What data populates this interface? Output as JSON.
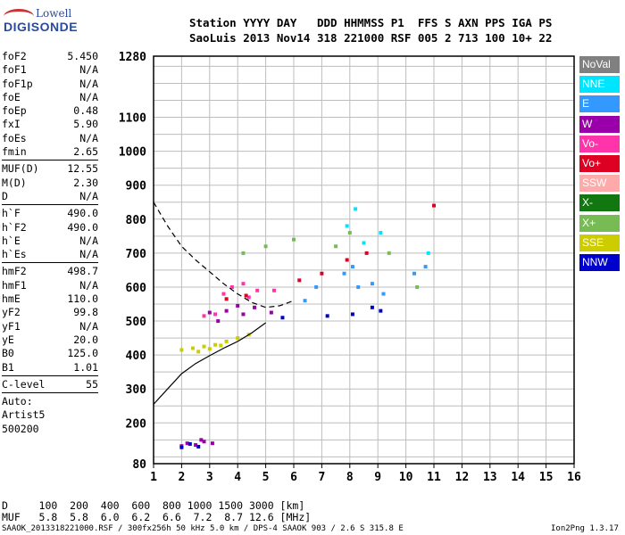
{
  "logo": {
    "top": "Lowell",
    "bottom": "DIGISONDE"
  },
  "header": {
    "line1": "Station YYYY DAY   DDD HHMMSS P1  FFS S AXN PPS IGA PS",
    "line2": "SaoLuis 2013 Nov14 318 221000 RSF 005 2 713 100 10+ 22"
  },
  "params_a": [
    {
      "k": "foF2",
      "v": "5.450"
    },
    {
      "k": "foF1",
      "v": "N/A"
    },
    {
      "k": "foF1p",
      "v": "N/A"
    },
    {
      "k": "foE",
      "v": "N/A"
    },
    {
      "k": "foEp",
      "v": "0.48"
    },
    {
      "k": "fxI",
      "v": "5.90"
    },
    {
      "k": "foEs",
      "v": "N/A"
    },
    {
      "k": "fmin",
      "v": "2.65"
    }
  ],
  "params_b": [
    {
      "k": "MUF(D)",
      "v": "12.55"
    },
    {
      "k": "M(D)",
      "v": "2.30"
    },
    {
      "k": "D",
      "v": "N/A"
    }
  ],
  "params_c": [
    {
      "k": "h`F",
      "v": "490.0"
    },
    {
      "k": "h`F2",
      "v": "490.0"
    },
    {
      "k": "h`E",
      "v": "N/A"
    },
    {
      "k": "h`Es",
      "v": "N/A"
    }
  ],
  "params_d": [
    {
      "k": "hmF2",
      "v": "498.7"
    },
    {
      "k": "hmF1",
      "v": "N/A"
    },
    {
      "k": "hmE",
      "v": "110.0"
    },
    {
      "k": "yF2",
      "v": "99.8"
    },
    {
      "k": "yF1",
      "v": "N/A"
    },
    {
      "k": "yE",
      "v": "20.0"
    },
    {
      "k": "B0",
      "v": "125.0"
    },
    {
      "k": "B1",
      "v": "1.01"
    }
  ],
  "params_e": [
    {
      "k": "C-level",
      "v": "55"
    }
  ],
  "auto": {
    "line1": "Auto:",
    "line2": "Artist5",
    "line3": "500200"
  },
  "legend": [
    {
      "label": "NoVal",
      "color": "#808080"
    },
    {
      "label": "NNE",
      "color": "#00e5ff"
    },
    {
      "label": "E",
      "color": "#3399ff"
    },
    {
      "label": "W",
      "color": "#9900aa"
    },
    {
      "label": "Vo-",
      "color": "#ff33aa"
    },
    {
      "label": "Vo+",
      "color": "#dd0022"
    },
    {
      "label": "SSW",
      "color": "#ffaaaa"
    },
    {
      "label": "X-",
      "color": "#117711"
    },
    {
      "label": "X+",
      "color": "#77bb55"
    },
    {
      "label": "SSE",
      "color": "#cccc00"
    },
    {
      "label": "NNW",
      "color": "#0000cc"
    }
  ],
  "bottom": {
    "d_row": "D     100  200  400  600  800 1000 1500 3000 [km]",
    "muf_row": "MUF   5.8  5.8  6.0  6.2  6.6  7.2  8.7 12.6 [MHz]"
  },
  "footer": {
    "left": "SAAOK_2013318221000.RSF / 300fx256h 50 kHz 5.0 km / DPS-4 SAAOK 903 / 2.6 S 315.8 E",
    "right": "Ion2Png 1.3.17"
  },
  "chart_data": {
    "type": "scatter",
    "xlim": [
      1,
      16
    ],
    "ylim": [
      80,
      1280
    ],
    "x_ticks": [
      1,
      2,
      3,
      4,
      5,
      6,
      7,
      8,
      9,
      10,
      11,
      12,
      13,
      14,
      15,
      16
    ],
    "y_ticks": [
      80,
      200,
      300,
      400,
      500,
      600,
      700,
      800,
      900,
      1000,
      1100,
      1280
    ],
    "grid": true,
    "series": [
      {
        "color": "#cccc00",
        "points": [
          [
            2.0,
            415
          ],
          [
            2.4,
            420
          ],
          [
            2.8,
            425
          ],
          [
            3.2,
            430
          ],
          [
            3.6,
            440
          ],
          [
            4.0,
            450
          ],
          [
            4.4,
            460
          ],
          [
            2.6,
            410
          ],
          [
            3.0,
            418
          ],
          [
            3.4,
            428
          ]
        ]
      },
      {
        "color": "#9900aa",
        "points": [
          [
            2.2,
            140
          ],
          [
            2.5,
            135
          ],
          [
            2.8,
            145
          ],
          [
            3.1,
            140
          ],
          [
            2.0,
            132
          ],
          [
            2.7,
            150
          ],
          [
            3.0,
            525
          ],
          [
            3.6,
            530
          ],
          [
            4.2,
            520
          ],
          [
            4.6,
            540
          ],
          [
            5.2,
            525
          ],
          [
            3.3,
            500
          ],
          [
            4.0,
            545
          ]
        ]
      },
      {
        "color": "#ff33aa",
        "points": [
          [
            2.8,
            515
          ],
          [
            3.2,
            520
          ],
          [
            3.8,
            600
          ],
          [
            4.2,
            610
          ],
          [
            4.7,
            590
          ],
          [
            5.3,
            590
          ],
          [
            3.5,
            580
          ],
          [
            4.4,
            570
          ]
        ]
      },
      {
        "color": "#3399ff",
        "points": [
          [
            6.4,
            560
          ],
          [
            6.8,
            600
          ],
          [
            7.8,
            640
          ],
          [
            8.1,
            660
          ],
          [
            8.8,
            610
          ],
          [
            9.2,
            580
          ],
          [
            10.3,
            640
          ],
          [
            10.7,
            660
          ],
          [
            8.3,
            600
          ]
        ]
      },
      {
        "color": "#dd0022",
        "points": [
          [
            3.6,
            565
          ],
          [
            4.3,
            575
          ],
          [
            7.0,
            640
          ],
          [
            7.9,
            680
          ],
          [
            8.6,
            700
          ],
          [
            6.2,
            620
          ],
          [
            11.0,
            840
          ]
        ]
      },
      {
        "color": "#0000cc",
        "points": [
          [
            2.0,
            128
          ],
          [
            2.3,
            138
          ],
          [
            2.6,
            130
          ],
          [
            5.6,
            510
          ],
          [
            7.2,
            515
          ],
          [
            8.1,
            520
          ],
          [
            8.8,
            540
          ],
          [
            9.1,
            530
          ]
        ]
      },
      {
        "color": "#77bb55",
        "points": [
          [
            4.2,
            700
          ],
          [
            5.0,
            720
          ],
          [
            6.0,
            740
          ],
          [
            7.5,
            720
          ],
          [
            8.0,
            760
          ],
          [
            9.4,
            700
          ],
          [
            10.4,
            600
          ]
        ]
      },
      {
        "color": "#00e5ff",
        "points": [
          [
            7.9,
            780
          ],
          [
            8.2,
            830
          ],
          [
            9.1,
            760
          ],
          [
            10.8,
            700
          ],
          [
            8.5,
            730
          ]
        ]
      }
    ],
    "curves": [
      {
        "style": "solid",
        "points": [
          [
            1.0,
            255
          ],
          [
            1.5,
            300
          ],
          [
            2.0,
            345
          ],
          [
            2.5,
            375
          ],
          [
            3.0,
            398
          ],
          [
            3.5,
            420
          ],
          [
            4.0,
            440
          ],
          [
            4.5,
            465
          ],
          [
            5.0,
            495
          ]
        ]
      },
      {
        "style": "dashed",
        "points": [
          [
            1.0,
            850
          ],
          [
            1.5,
            780
          ],
          [
            2.0,
            720
          ],
          [
            2.5,
            680
          ],
          [
            3.0,
            645
          ],
          [
            3.5,
            610
          ],
          [
            4.0,
            580
          ],
          [
            4.5,
            555
          ],
          [
            5.0,
            540
          ],
          [
            5.5,
            545
          ],
          [
            6.0,
            560
          ]
        ]
      }
    ]
  }
}
